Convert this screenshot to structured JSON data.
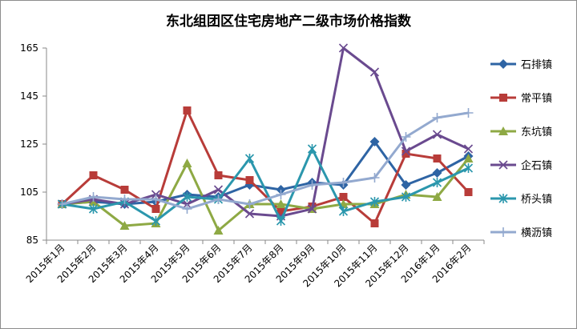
{
  "chart_data": {
    "type": "line",
    "title": "东北组团区住宅房地产二级市场价格指数",
    "xlabel": "",
    "ylabel": "",
    "categories": [
      "2015年1月",
      "2015年2月",
      "2015年3月",
      "2015年4月",
      "2015年5月",
      "2015年6月",
      "2015年7月",
      "2015年8月",
      "2015年9月",
      "2015年10月",
      "2015年11月",
      "2015年12月",
      "2016年1月",
      "2016年2月"
    ],
    "ylim": [
      85,
      165
    ],
    "yticks": [
      85,
      105,
      125,
      145,
      165
    ],
    "grid": false,
    "legend": "right",
    "series": [
      {
        "name": "石排镇",
        "color": "#2e64a4",
        "marker": "diamond",
        "values": [
          100,
          101,
          100,
          101,
          104,
          103,
          108,
          106,
          109,
          108,
          126,
          108,
          113,
          120
        ]
      },
      {
        "name": "常平镇",
        "color": "#b83c39",
        "marker": "square",
        "values": [
          100,
          112,
          106,
          98,
          139,
          112,
          110,
          97,
          99,
          103,
          92,
          121,
          119,
          105
        ]
      },
      {
        "name": "东坑镇",
        "color": "#8ea944",
        "marker": "triangle",
        "values": [
          100,
          101,
          91,
          92,
          117,
          89,
          100,
          100,
          98,
          100,
          100,
          104,
          103,
          119
        ]
      },
      {
        "name": "企石镇",
        "color": "#6a4a8f",
        "marker": "x",
        "values": [
          100,
          102,
          100,
          104,
          100,
          106,
          96,
          95,
          98,
          165,
          155,
          122,
          129,
          123
        ]
      },
      {
        "name": "桥头镇",
        "color": "#2b97ad",
        "marker": "star",
        "values": [
          100,
          98,
          101,
          93,
          103,
          102,
          119,
          93,
          123,
          97,
          101,
          103,
          109,
          115
        ]
      },
      {
        "name": "横沥镇",
        "color": "#93a9cf",
        "marker": "plus",
        "values": [
          100,
          103,
          102,
          102,
          98,
          102,
          100,
          104,
          108,
          109,
          111,
          128,
          136,
          138
        ]
      }
    ]
  }
}
